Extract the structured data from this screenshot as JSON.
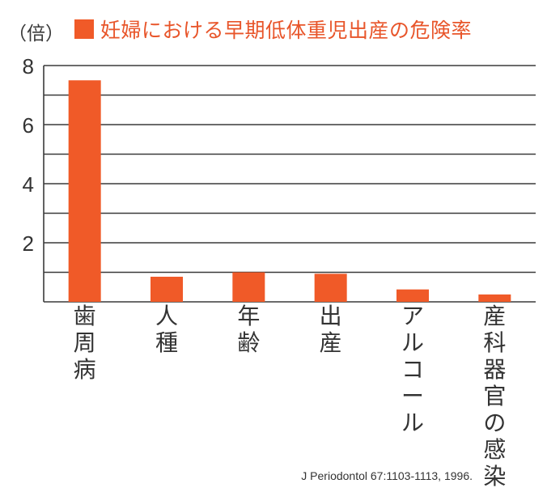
{
  "chart_data": {
    "type": "bar",
    "ylabel": "（倍）",
    "legend": [
      {
        "name": "妊婦における早期低体重児出産の危険率",
        "color": "#f05a28"
      }
    ],
    "categories": [
      "歯周病",
      "人種",
      "年齢",
      "出産",
      "アルコール",
      "産科器官の感染"
    ],
    "series": [
      {
        "name": "妊婦における早期低体重児出産の危険率",
        "values": [
          7.5,
          0.85,
          1.0,
          0.95,
          0.42,
          0.25
        ]
      }
    ],
    "ylim": [
      0,
      8
    ],
    "yticks": [
      2,
      4,
      6,
      8
    ],
    "grid": true,
    "legend_position": "top"
  },
  "source": "J Periodontol 67:1103-1113, 1996.",
  "colors": {
    "bar": "#f05a28",
    "legend_text": "#e8552a",
    "grid": "#3a3a3a",
    "text": "#333333"
  }
}
